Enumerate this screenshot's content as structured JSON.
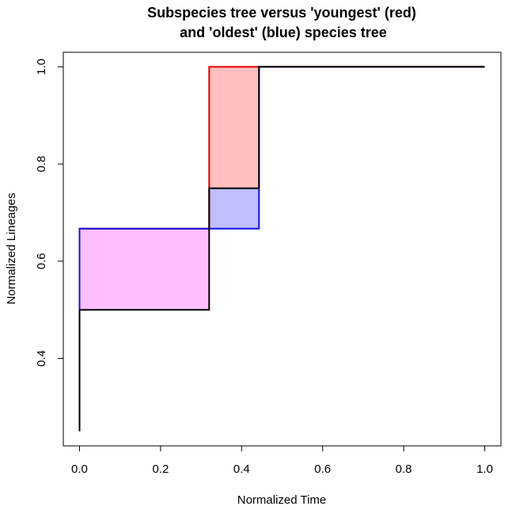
{
  "chart_data": {
    "type": "line",
    "title_line1": "Subspecies tree versus 'youngest' (red)",
    "title_line2": "and 'oldest' (blue) species tree",
    "xlabel": "Normalized Time",
    "ylabel": "Normalized Lineages",
    "xlim": [
      -0.04,
      1.04
    ],
    "ylim": [
      0.22,
      1.03
    ],
    "xticks": [
      0.0,
      0.2,
      0.4,
      0.6,
      0.8,
      1.0
    ],
    "xtick_labels": [
      "0.0",
      "0.2",
      "0.4",
      "0.6",
      "0.8",
      "1.0"
    ],
    "yticks": [
      0.4,
      0.6,
      0.8,
      1.0
    ],
    "ytick_labels": [
      "0.4",
      "0.6",
      "0.8",
      "1.0"
    ],
    "grid": false,
    "series": [
      {
        "name": "youngest",
        "color": "#e00000",
        "x": [
          0.0,
          0.0,
          0.32,
          0.32,
          1.0
        ],
        "y": [
          0.333,
          0.667,
          0.667,
          1.0,
          1.0
        ]
      },
      {
        "name": "oldest",
        "color": "#1010e0",
        "x": [
          0.0,
          0.0,
          0.443,
          0.443,
          1.0
        ],
        "y": [
          0.333,
          0.667,
          0.667,
          1.0,
          1.0
        ]
      },
      {
        "name": "subspecies",
        "color": "#000000",
        "x": [
          0.0,
          0.0,
          0.32,
          0.32,
          0.443,
          0.443,
          1.0
        ],
        "y": [
          0.25,
          0.5,
          0.5,
          0.75,
          0.75,
          1.0,
          1.0
        ]
      }
    ],
    "shaded_regions": [
      {
        "name": "pink-region",
        "x": [
          0.0,
          0.32
        ],
        "y": [
          0.5,
          0.667
        ],
        "color": "#ffbfff"
      },
      {
        "name": "red-region",
        "x": [
          0.32,
          0.443
        ],
        "y": [
          0.75,
          1.0
        ],
        "color": "#ffbfbf"
      },
      {
        "name": "blue-region",
        "x": [
          0.32,
          0.443
        ],
        "y": [
          0.667,
          0.75
        ],
        "color": "#bfbfff"
      }
    ]
  }
}
